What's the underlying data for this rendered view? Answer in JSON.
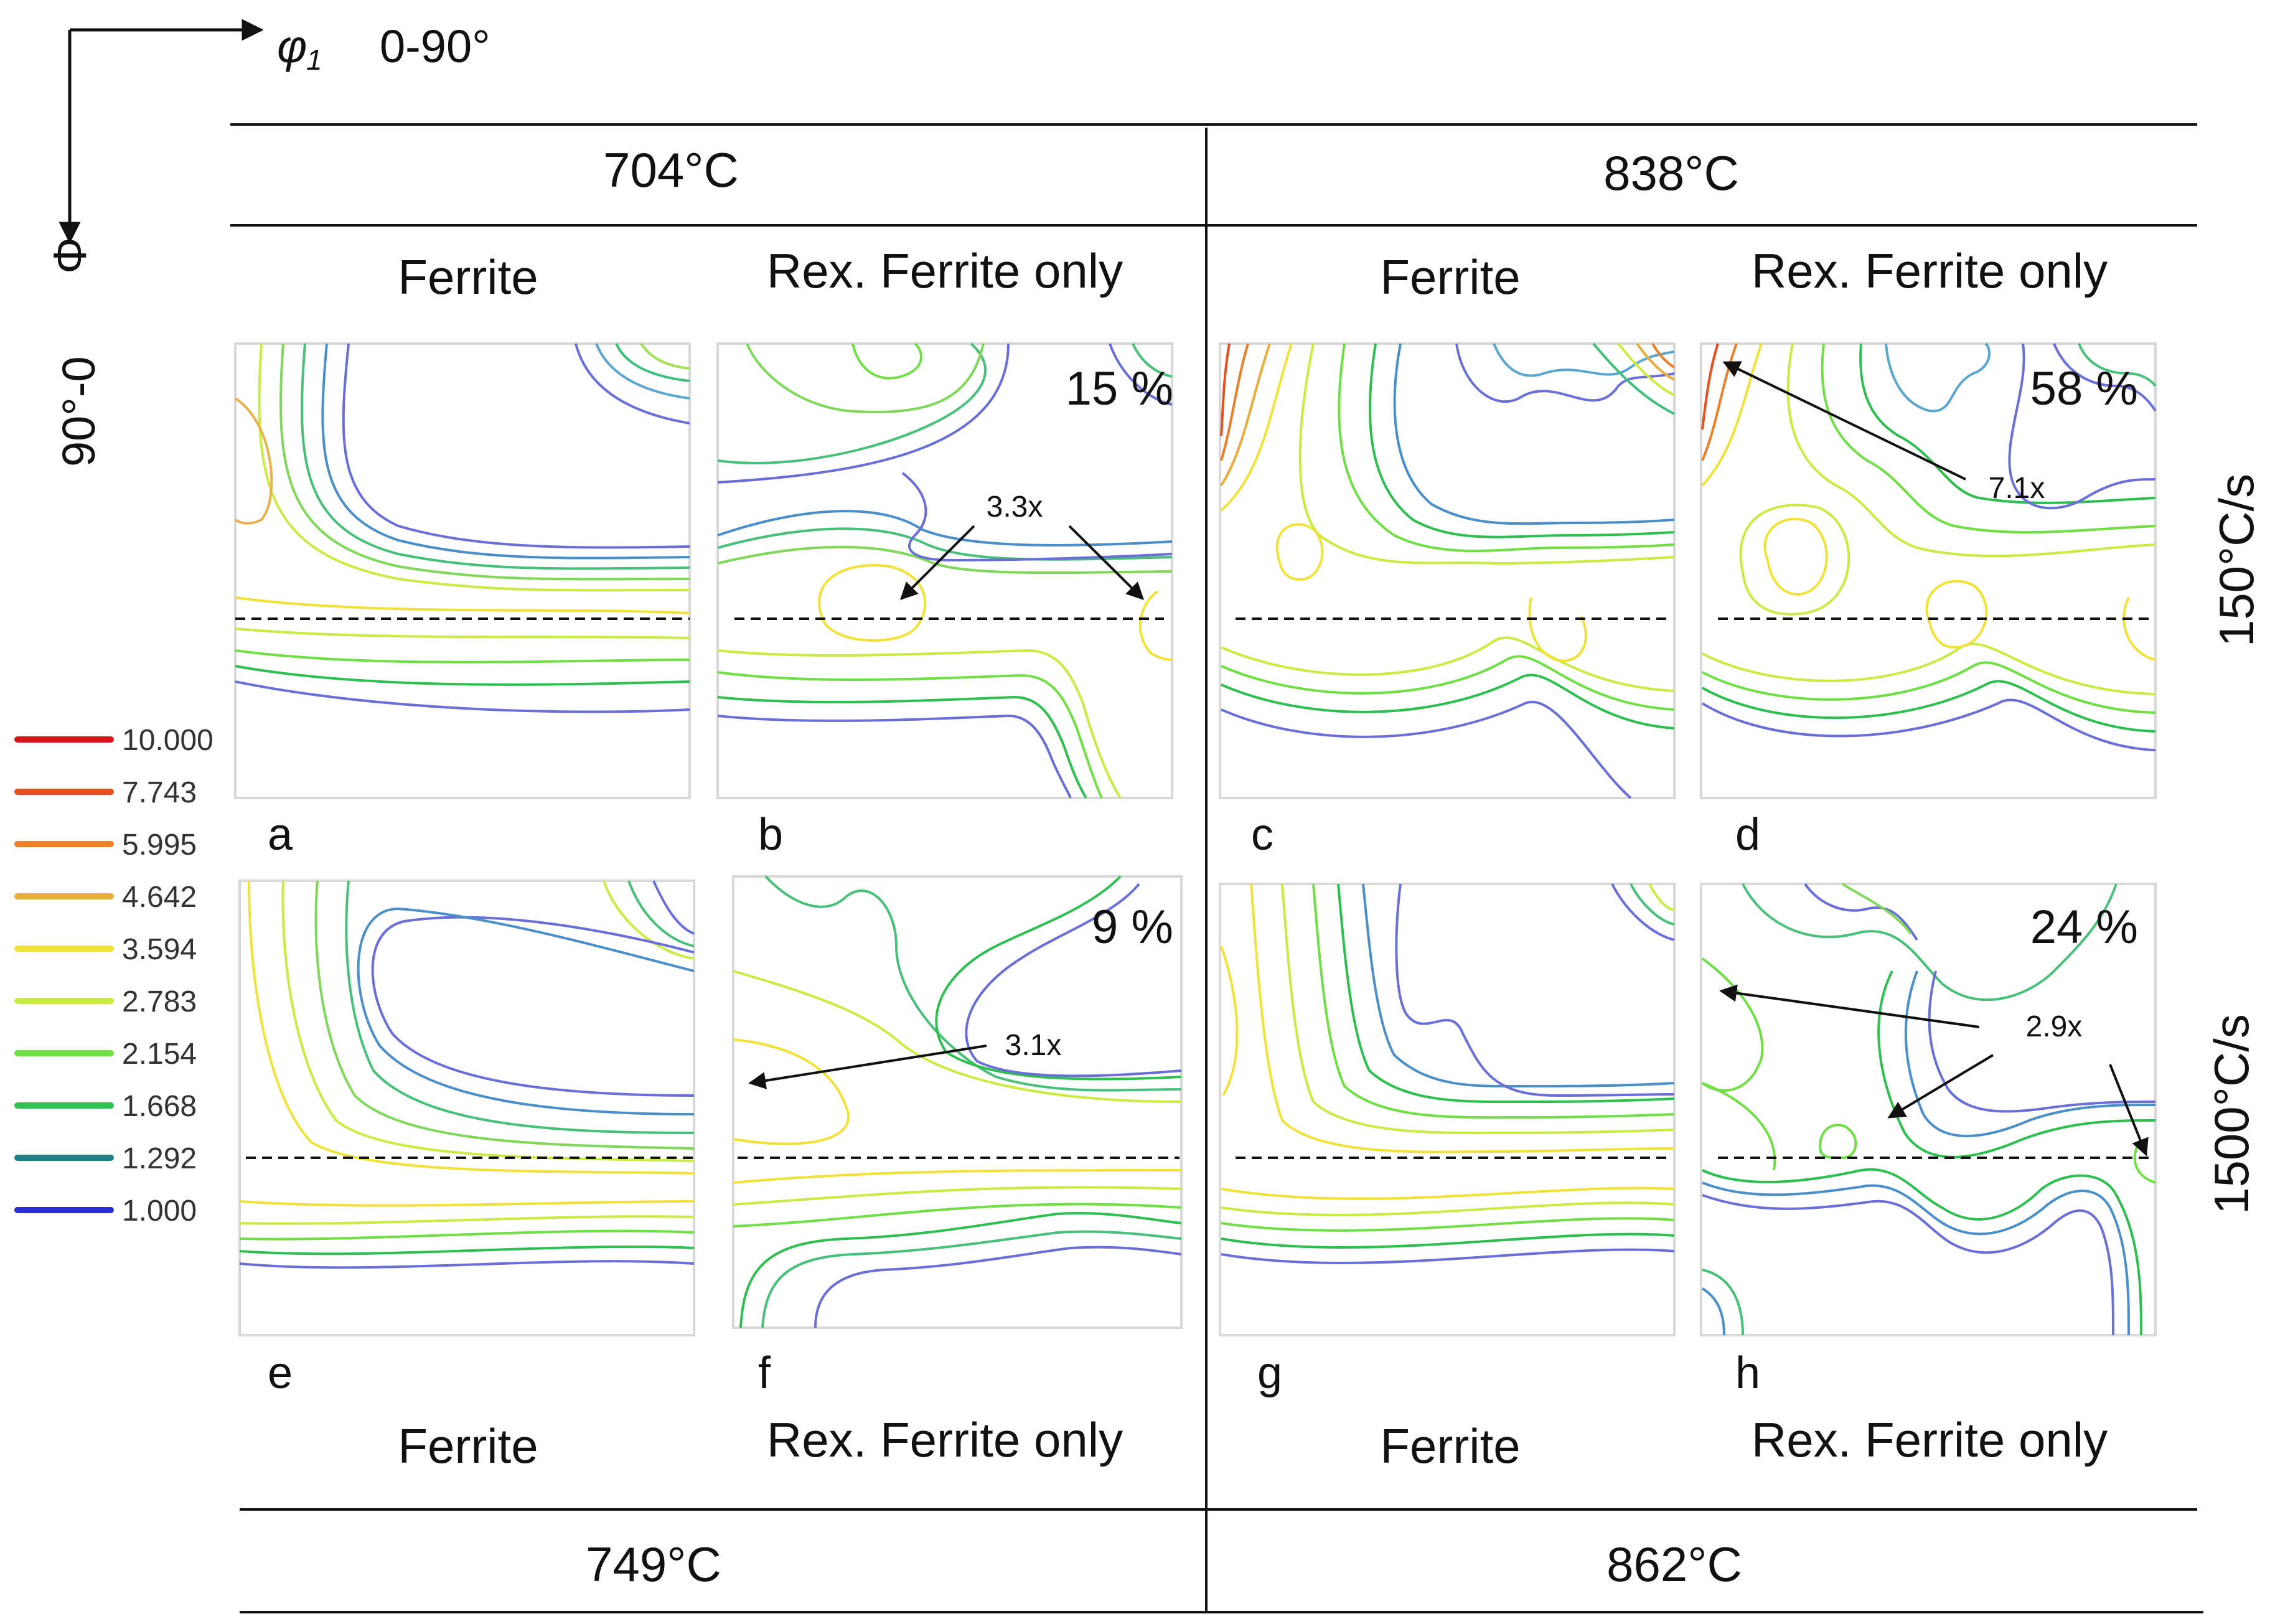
{
  "axes": {
    "phi1_symbol": "φ",
    "phi1_subscript": "1",
    "phi1_range": "0-90°",
    "Phi_symbol": "Φ",
    "Phi_range": "90°-0"
  },
  "columns": {
    "top_left": "704°C",
    "top_right": "838°C",
    "bottom_left": "749°C",
    "bottom_right": "862°C"
  },
  "col_labels": {
    "ferrite": "Ferrite",
    "rex": "Rex. Ferrite only"
  },
  "rows": {
    "top_rate": "150°C/s",
    "bottom_rate": "1500°C/s"
  },
  "panels": [
    {
      "letter": "a",
      "percent": "",
      "annotation": ""
    },
    {
      "letter": "b",
      "percent": "15 %",
      "annotation": "3.3x"
    },
    {
      "letter": "c",
      "percent": "",
      "annotation": ""
    },
    {
      "letter": "d",
      "percent": "58 %",
      "annotation": "7.1x"
    },
    {
      "letter": "e",
      "percent": "",
      "annotation": ""
    },
    {
      "letter": "f",
      "percent": "9 %",
      "annotation": "3.1x"
    },
    {
      "letter": "g",
      "percent": "",
      "annotation": ""
    },
    {
      "letter": "h",
      "percent": "24 %",
      "annotation": "2.9x"
    }
  ],
  "legend": [
    {
      "value": "10.000",
      "color": "#d9141b"
    },
    {
      "value": "7.743",
      "color": "#e6501e"
    },
    {
      "value": "5.995",
      "color": "#ec7f2a"
    },
    {
      "value": "4.642",
      "color": "#e8ad3a"
    },
    {
      "value": "3.594",
      "color": "#f1e23a"
    },
    {
      "value": "2.783",
      "color": "#c8ec43"
    },
    {
      "value": "2.154",
      "color": "#6fdf45"
    },
    {
      "value": "1.668",
      "color": "#2fbe50"
    },
    {
      "value": "1.292",
      "color": "#1f7e86"
    },
    {
      "value": "1.000",
      "color": "#2b2fd0"
    }
  ]
}
